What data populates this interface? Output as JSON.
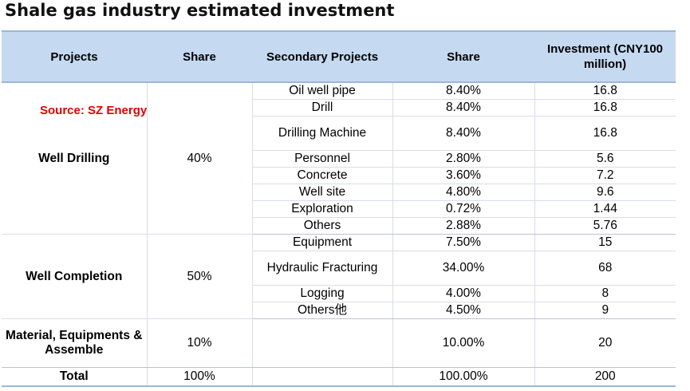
{
  "title": "Shale gas industry estimated investment",
  "source": "Source: SZ Energy",
  "header": {
    "projects": "Projects",
    "share": "Share",
    "secondary": "Secondary Projects",
    "share2": "Share",
    "investment": "Investment (CNY100 million)"
  },
  "groups": [
    {
      "name": "Well Drilling",
      "share": "40%",
      "rows": [
        {
          "item": "Oil well pipe",
          "share": "8.40%",
          "inv": "16.8"
        },
        {
          "item": "Drill",
          "share": "8.40%",
          "inv": "16.8"
        },
        {
          "item": "Drilling Machine",
          "share": "8.40%",
          "inv": "16.8"
        },
        {
          "item": "Personnel",
          "share": "2.80%",
          "inv": "5.6"
        },
        {
          "item": "Concrete",
          "share": "3.60%",
          "inv": "7.2"
        },
        {
          "item": "Well site",
          "share": "4.80%",
          "inv": "9.6"
        },
        {
          "item": "Exploration",
          "share": "0.72%",
          "inv": "1.44"
        },
        {
          "item": "Others",
          "share": "2.88%",
          "inv": "5.76"
        }
      ]
    },
    {
      "name": "Well Completion",
      "share": "50%",
      "rows": [
        {
          "item": "Equipment",
          "share": "7.50%",
          "inv": "15"
        },
        {
          "item": "Hydraulic Fracturing",
          "share": "34.00%",
          "inv": "68"
        },
        {
          "item": "Logging",
          "share": "4.00%",
          "inv": "8"
        },
        {
          "item": "Others他",
          "share": "4.50%",
          "inv": "9"
        }
      ]
    },
    {
      "name": "Material, Equipments & Assemble",
      "share": "10%",
      "rows": [
        {
          "item": "",
          "share": "10.00%",
          "inv": "20"
        }
      ]
    }
  ],
  "total": {
    "label": "Total",
    "share": "100%",
    "share2": "100.00%",
    "inv": "200"
  }
}
